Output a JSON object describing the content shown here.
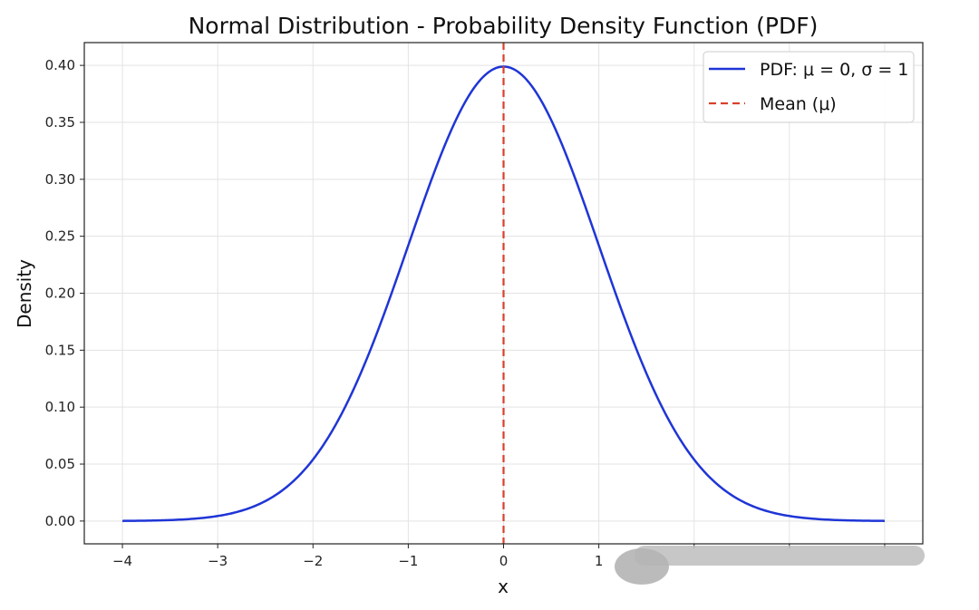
{
  "chart_data": {
    "type": "line",
    "title": "Normal Distribution - Probability Density Function (PDF)",
    "xlabel": "x",
    "ylabel": "Density",
    "xlim": [
      -4.4,
      4.4
    ],
    "ylim": [
      -0.02,
      0.42
    ],
    "grid": true,
    "legend_position": "top-right",
    "x_ticks": [
      -4,
      -3,
      -2,
      -1,
      0,
      1
    ],
    "x_tick_labels": [
      "−4",
      "−3",
      "−2",
      "−1",
      "0",
      "1"
    ],
    "y_ticks": [
      0.0,
      0.05,
      0.1,
      0.15,
      0.2,
      0.25,
      0.3,
      0.35,
      0.4
    ],
    "y_tick_labels": [
      "0.00",
      "0.05",
      "0.10",
      "0.15",
      "0.20",
      "0.25",
      "0.30",
      "0.35",
      "0.40"
    ],
    "series": [
      {
        "name": "PDF: μ = 0, σ = 1",
        "kind": "curve",
        "color": "#1f35d6",
        "x": [
          -4.0,
          -3.5,
          -3.0,
          -2.75,
          -2.5,
          -2.25,
          -2.0,
          -1.75,
          -1.5,
          -1.25,
          -1.0,
          -0.75,
          -0.5,
          -0.25,
          0.0,
          0.25,
          0.5,
          0.75,
          1.0,
          1.25,
          1.5,
          1.75,
          2.0,
          2.25,
          2.5,
          2.75,
          3.0,
          3.5,
          4.0
        ],
        "y": [
          0.0001,
          0.0009,
          0.0044,
          0.0091,
          0.0175,
          0.0317,
          0.054,
          0.0863,
          0.1295,
          0.1826,
          0.242,
          0.3011,
          0.3521,
          0.3867,
          0.3989,
          0.3867,
          0.3521,
          0.3011,
          0.242,
          0.1826,
          0.1295,
          0.0863,
          0.054,
          0.0317,
          0.0175,
          0.0091,
          0.0044,
          0.0009,
          0.0001
        ]
      },
      {
        "name": "Mean (μ)",
        "kind": "vline",
        "color": "#d9402b",
        "x": 0
      }
    ]
  }
}
